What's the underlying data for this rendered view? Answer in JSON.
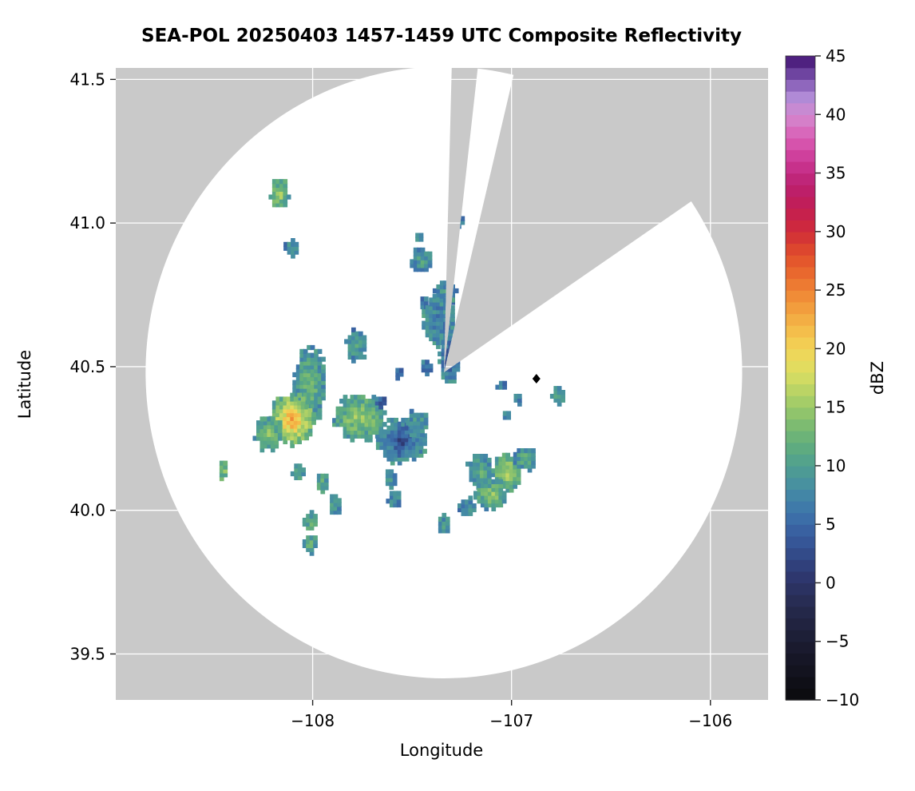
{
  "chart_data": {
    "type": "heatmap",
    "title": "SEA-POL 20250403 1457-1459 UTC Composite Reflectivity",
    "xlabel": "Longitude",
    "ylabel": "Latitude",
    "xlim": [
      -108.99,
      -105.71
    ],
    "ylim": [
      39.34,
      41.54
    ],
    "xticks": [
      -108,
      -107,
      -106
    ],
    "xtick_labels": [
      "−108",
      "−107",
      "−106"
    ],
    "yticks": [
      39.5,
      40.0,
      40.5,
      41.0,
      41.5
    ],
    "ytick_labels": [
      "39.5",
      "40.0",
      "40.5",
      "41.0",
      "41.5"
    ],
    "grid": true,
    "outside_coverage_color": "#c9c9c9",
    "coverage_fill": "#ffffff",
    "gridline_color": "#ffffff",
    "colorbar": {
      "label": "dBZ",
      "min": -10,
      "max": 45,
      "ticks": [
        -10,
        -5,
        0,
        5,
        10,
        15,
        20,
        25,
        30,
        35,
        40,
        45
      ],
      "tick_labels": [
        "−10",
        "−5",
        "0",
        "5",
        "10",
        "15",
        "20",
        "25",
        "30",
        "35",
        "40",
        "45"
      ],
      "stops": [
        [
          -10,
          "#0a0a0c"
        ],
        [
          -6,
          "#18182a"
        ],
        [
          -2,
          "#262a4d"
        ],
        [
          1,
          "#2f3a74"
        ],
        [
          4,
          "#375b9e"
        ],
        [
          6,
          "#3d74ab"
        ],
        [
          8,
          "#458ca4"
        ],
        [
          10,
          "#4f9f90"
        ],
        [
          12,
          "#63af7b"
        ],
        [
          14,
          "#85bf6e"
        ],
        [
          16,
          "#b0d166"
        ],
        [
          18,
          "#dcde62"
        ],
        [
          20,
          "#f2d557"
        ],
        [
          22,
          "#f4b647"
        ],
        [
          24,
          "#f19539"
        ],
        [
          26,
          "#ec712f"
        ],
        [
          28,
          "#e14e2b"
        ],
        [
          30,
          "#d02c38"
        ],
        [
          32,
          "#c21d52"
        ],
        [
          34,
          "#bb2070"
        ],
        [
          36,
          "#cb3694"
        ],
        [
          38,
          "#da5cb4"
        ],
        [
          40,
          "#d38ad0"
        ],
        [
          41.5,
          "#b08ad6"
        ],
        [
          43,
          "#7e55b0"
        ],
        [
          44.5,
          "#4f2180"
        ],
        [
          45,
          "#3a0d63"
        ]
      ]
    },
    "radar_coverage": {
      "center_lon": -107.34,
      "center_lat": 40.48,
      "radius_lon_deg": 1.5,
      "radius_lat_deg": 1.065,
      "blocked_sectors_azimuth_deg": [
        [
          1.5,
          6.5
        ],
        [
          13.5,
          56
        ]
      ]
    },
    "site_marker": {
      "lon": -106.875,
      "lat": 40.458,
      "symbol": "diamond",
      "color": "#000000"
    },
    "echoes": [
      {
        "lon": -108.165,
        "lat": 41.1,
        "w": 0.045,
        "h": 0.05,
        "core": 16,
        "edge": 10
      },
      {
        "lon": -108.1,
        "lat": 40.915,
        "w": 0.035,
        "h": 0.03,
        "core": 9,
        "edge": 7
      },
      {
        "lon": -107.47,
        "lat": 40.95,
        "w": 0.02,
        "h": 0.02,
        "core": 8,
        "edge": 7
      },
      {
        "lon": -107.45,
        "lat": 40.87,
        "w": 0.05,
        "h": 0.045,
        "core": 10,
        "edge": 7
      },
      {
        "lon": -107.27,
        "lat": 41.005,
        "w": 0.03,
        "h": 0.03,
        "core": 8,
        "edge": 6
      },
      {
        "lon": -107.33,
        "lat": 40.755,
        "w": 0.055,
        "h": 0.045,
        "core": 9,
        "edge": 7
      },
      {
        "lon": -107.44,
        "lat": 40.72,
        "w": 0.025,
        "h": 0.025,
        "core": 8,
        "edge": 6
      },
      {
        "lon": -107.36,
        "lat": 40.66,
        "w": 0.08,
        "h": 0.09,
        "core": 6,
        "edge": 9
      },
      {
        "lon": -107.31,
        "lat": 40.53,
        "w": 0.05,
        "h": 0.08,
        "core": 2,
        "edge": 8
      },
      {
        "lon": -107.43,
        "lat": 40.5,
        "w": 0.03,
        "h": 0.025,
        "core": 8,
        "edge": 6
      },
      {
        "lon": -107.78,
        "lat": 40.575,
        "w": 0.05,
        "h": 0.055,
        "core": 10,
        "edge": 7
      },
      {
        "lon": -107.57,
        "lat": 40.48,
        "w": 0.02,
        "h": 0.02,
        "core": 7,
        "edge": 6
      },
      {
        "lon": -108.01,
        "lat": 40.44,
        "w": 0.08,
        "h": 0.13,
        "core": 13,
        "edge": 8
      },
      {
        "lon": -108.1,
        "lat": 40.315,
        "w": 0.11,
        "h": 0.09,
        "core": 24,
        "edge": 11
      },
      {
        "lon": -108.22,
        "lat": 40.27,
        "w": 0.07,
        "h": 0.06,
        "core": 14,
        "edge": 9
      },
      {
        "lon": -107.76,
        "lat": 40.325,
        "w": 0.13,
        "h": 0.08,
        "core": 16,
        "edge": 9
      },
      {
        "lon": -107.65,
        "lat": 40.38,
        "w": 0.025,
        "h": 0.02,
        "core": 2,
        "edge": 6
      },
      {
        "lon": -107.55,
        "lat": 40.245,
        "w": 0.12,
        "h": 0.08,
        "core": 2,
        "edge": 9
      },
      {
        "lon": -107.47,
        "lat": 40.3,
        "w": 0.05,
        "h": 0.05,
        "core": 10,
        "edge": 8
      },
      {
        "lon": -108.45,
        "lat": 40.145,
        "w": 0.025,
        "h": 0.035,
        "core": 15,
        "edge": 11
      },
      {
        "lon": -108.07,
        "lat": 40.13,
        "w": 0.03,
        "h": 0.03,
        "core": 10,
        "edge": 8
      },
      {
        "lon": -107.95,
        "lat": 40.095,
        "w": 0.035,
        "h": 0.03,
        "core": 12,
        "edge": 9
      },
      {
        "lon": -107.89,
        "lat": 40.02,
        "w": 0.03,
        "h": 0.04,
        "core": 11,
        "edge": 8
      },
      {
        "lon": -108.01,
        "lat": 39.96,
        "w": 0.03,
        "h": 0.035,
        "core": 12,
        "edge": 9
      },
      {
        "lon": -108.01,
        "lat": 39.885,
        "w": 0.03,
        "h": 0.035,
        "core": 13,
        "edge": 9
      },
      {
        "lon": -107.61,
        "lat": 40.11,
        "w": 0.03,
        "h": 0.03,
        "core": 9,
        "edge": 7
      },
      {
        "lon": -107.59,
        "lat": 40.035,
        "w": 0.03,
        "h": 0.03,
        "core": 9,
        "edge": 7
      },
      {
        "lon": -107.16,
        "lat": 40.14,
        "w": 0.06,
        "h": 0.06,
        "core": 12,
        "edge": 8
      },
      {
        "lon": -107.02,
        "lat": 40.135,
        "w": 0.07,
        "h": 0.065,
        "core": 17,
        "edge": 10
      },
      {
        "lon": -106.93,
        "lat": 40.18,
        "w": 0.05,
        "h": 0.04,
        "core": 12,
        "edge": 8
      },
      {
        "lon": -107.1,
        "lat": 40.055,
        "w": 0.08,
        "h": 0.05,
        "core": 15,
        "edge": 9
      },
      {
        "lon": -107.22,
        "lat": 40.01,
        "w": 0.04,
        "h": 0.035,
        "core": 9,
        "edge": 7
      },
      {
        "lon": -107.34,
        "lat": 39.95,
        "w": 0.035,
        "h": 0.035,
        "core": 10,
        "edge": 7
      },
      {
        "lon": -107.05,
        "lat": 40.435,
        "w": 0.02,
        "h": 0.02,
        "core": 8,
        "edge": 6
      },
      {
        "lon": -107.03,
        "lat": 40.33,
        "w": 0.02,
        "h": 0.02,
        "core": 8,
        "edge": 6
      },
      {
        "lon": -106.97,
        "lat": 40.39,
        "w": 0.025,
        "h": 0.02,
        "core": 8,
        "edge": 6
      },
      {
        "lon": -106.76,
        "lat": 40.4,
        "w": 0.035,
        "h": 0.03,
        "core": 11,
        "edge": 8
      }
    ]
  }
}
